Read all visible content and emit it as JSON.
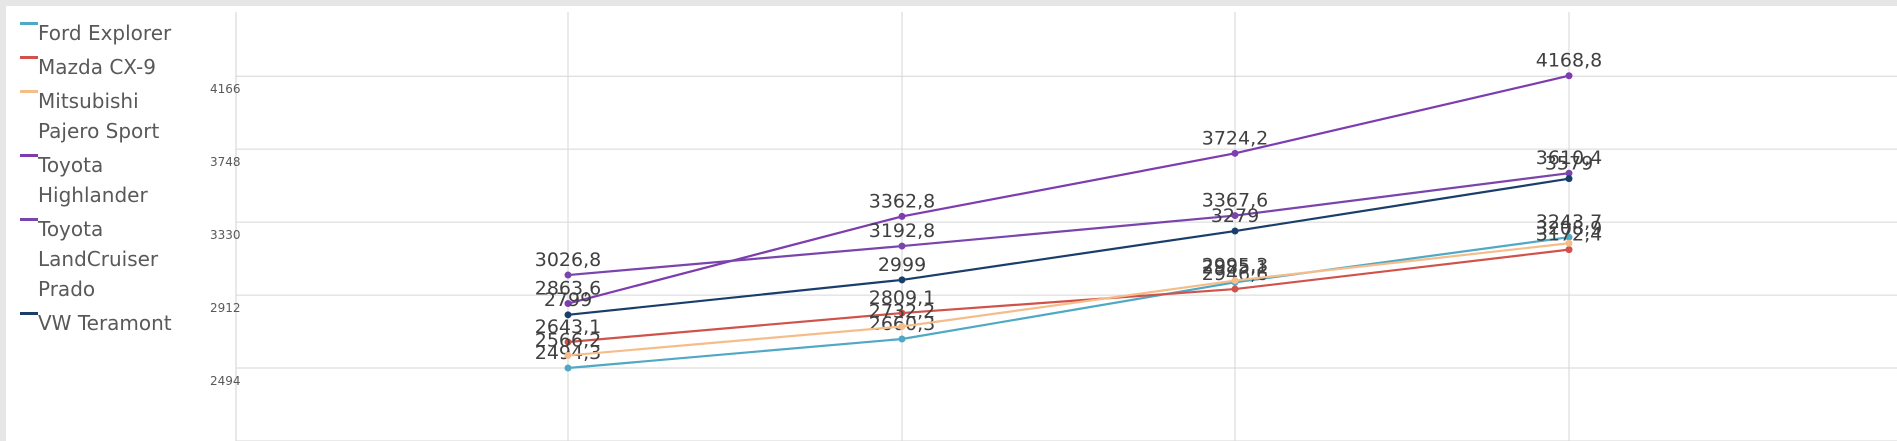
{
  "chart_data": {
    "type": "line",
    "title": "",
    "xlabel": "",
    "ylabel": "",
    "x": [
      "",
      "",
      "",
      ""
    ],
    "yticks": [
      2076,
      2494,
      2912,
      3330,
      3748,
      4166
    ],
    "ylim": [
      2076,
      4534
    ],
    "grid": true,
    "legend_position": "left",
    "series": [
      {
        "name": "Ford Explorer",
        "color": "#4fa8c4",
        "values": [
          2494.3,
          2660.3,
          2985.1,
          3243.7
        ],
        "labels": [
          "2494,3",
          "2660,3",
          "2985,1",
          "3243,7"
        ]
      },
      {
        "name": "Mazda CX-9",
        "color": "#d0524a",
        "values": [
          2643.1,
          2809.1,
          2946.6,
          3172.4
        ],
        "labels": [
          "2643,1",
          "2809,1",
          "2946,6",
          "3172,4"
        ]
      },
      {
        "name": "Mitsubishi Pajero Sport",
        "color": "#f5bd8a",
        "values": [
          2566.2,
          2732.2,
          2995.3,
          3208.9
        ],
        "labels": [
          "2566,2",
          "2732,2",
          "2995,3",
          "3208,9"
        ]
      },
      {
        "name": "Toyota Highlander",
        "color": "#7d3daf",
        "values": [
          2863.6,
          3362.8,
          3724.2,
          4168.8
        ],
        "labels": [
          "2863,6",
          "3362,8",
          "3724,2",
          "4168,8"
        ]
      },
      {
        "name": "Toyota LandCruiser Prado",
        "color": "#7a44ad",
        "values": [
          3026.8,
          3192.8,
          3367.6,
          3610.4
        ],
        "labels": [
          "3026,8",
          "3192,8",
          "3367,6",
          "3610,4"
        ]
      },
      {
        "name": "VW Teramont",
        "color": "#1a3e6b",
        "values": [
          2799,
          2999,
          3279,
          3579
        ],
        "labels": [
          "2799",
          "2999",
          "3279",
          "3579"
        ]
      }
    ]
  },
  "legend": [
    {
      "lines": [
        "Ford Explorer"
      ],
      "color": "#4fa8c4"
    },
    {
      "lines": [
        "Mazda CX-9"
      ],
      "color": "#d0524a"
    },
    {
      "lines": [
        "Mitsubishi",
        "Pajero Sport"
      ],
      "color": "#f5bd8a"
    },
    {
      "lines": [
        "Toyota",
        "Highlander"
      ],
      "color": "#7d3daf"
    },
    {
      "lines": [
        "Toyota",
        "LandCruiser",
        "Prado"
      ],
      "color": "#7a44ad"
    },
    {
      "lines": [
        "VW Teramont"
      ],
      "color": "#1a3e6b"
    }
  ]
}
